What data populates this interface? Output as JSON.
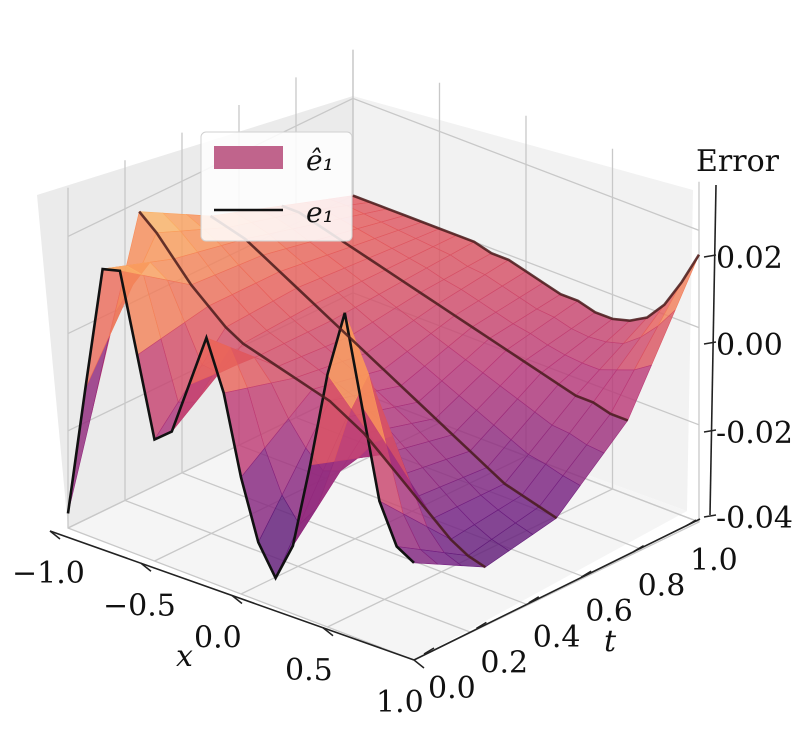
{
  "chart_data": {
    "type": "surface3d",
    "title": "",
    "xlabel": "x",
    "ylabel": "t",
    "zlabel": "Error",
    "xlim": [
      -1.0,
      1.0
    ],
    "ylim": [
      0.0,
      1.0
    ],
    "zlim": [
      -0.04,
      0.03
    ],
    "x_ticks": [
      "−1.0",
      "−0.5",
      "0.0",
      "0.5",
      "1.0"
    ],
    "y_ticks": [
      "0.0",
      "0.2",
      "0.4",
      "0.6",
      "0.8",
      "1.0"
    ],
    "z_ticks": [
      "0.02",
      "0.00",
      "-0.02",
      "-0.04"
    ],
    "grid": true,
    "legend_position": "upper-left",
    "series": [
      {
        "name": "ê₁",
        "kind": "surface",
        "colormap": "magma",
        "color": "#c0648c"
      },
      {
        "name": "e₁",
        "kind": "lines",
        "color": "#111111"
      }
    ],
    "slices": [
      {
        "t": 0.0,
        "x": [
          -1.0,
          -0.9,
          -0.8,
          -0.7,
          -0.6,
          -0.5,
          -0.4,
          -0.3,
          -0.2,
          -0.1,
          0.0,
          0.1,
          0.2,
          0.3,
          0.4,
          0.5,
          0.6,
          0.7,
          0.8,
          0.9,
          1.0
        ],
        "e1": [
          -0.037,
          -0.01,
          0.016,
          0.017,
          0.001,
          -0.015,
          -0.012,
          -0.001,
          0.01,
          0.0,
          -0.016,
          -0.028,
          -0.034,
          -0.026,
          -0.008,
          0.012,
          0.026,
          0.008,
          -0.01,
          -0.018,
          -0.02
        ]
      },
      {
        "t": 0.25,
        "x": [
          -1.0,
          -0.9,
          -0.8,
          -0.7,
          -0.6,
          -0.5,
          -0.4,
          -0.3,
          -0.2,
          -0.1,
          0.0,
          0.1,
          0.2,
          0.3,
          0.4,
          0.5,
          0.6,
          0.7,
          0.8,
          0.9,
          1.0
        ],
        "e1": [
          0.018,
          0.015,
          0.011,
          0.007,
          0.004,
          0.001,
          -0.001,
          -0.002,
          -0.003,
          -0.004,
          -0.005,
          -0.006,
          -0.008,
          -0.01,
          -0.013,
          -0.016,
          -0.019,
          -0.022,
          -0.025,
          -0.027,
          -0.028
        ]
      },
      {
        "t": 0.5,
        "x": [
          -1.0,
          -0.9,
          -0.8,
          -0.7,
          -0.6,
          -0.5,
          -0.4,
          -0.3,
          -0.2,
          -0.1,
          0.0,
          0.1,
          0.2,
          0.3,
          0.4,
          0.5,
          0.6,
          0.7,
          0.8,
          0.9,
          1.0
        ],
        "e1": [
          0.01,
          0.009,
          0.008,
          0.006,
          0.004,
          0.002,
          0.0,
          -0.002,
          -0.004,
          -0.006,
          -0.008,
          -0.01,
          -0.012,
          -0.014,
          -0.016,
          -0.018,
          -0.02,
          -0.022,
          -0.023,
          -0.024,
          -0.025
        ]
      },
      {
        "t": 0.75,
        "x": [
          -1.0,
          -0.9,
          -0.8,
          -0.7,
          -0.6,
          -0.5,
          -0.4,
          -0.3,
          -0.2,
          -0.1,
          0.0,
          0.1,
          0.2,
          0.3,
          0.4,
          0.5,
          0.6,
          0.7,
          0.8,
          0.9,
          1.0
        ],
        "e1": [
          0.005,
          0.005,
          0.004,
          0.003,
          0.002,
          0.001,
          0.0,
          -0.001,
          -0.002,
          -0.003,
          -0.004,
          -0.005,
          -0.006,
          -0.007,
          -0.008,
          -0.009,
          -0.01,
          -0.011,
          -0.011,
          -0.012,
          -0.012
        ]
      },
      {
        "t": 1.0,
        "x": [
          -1.0,
          -0.9,
          -0.8,
          -0.7,
          -0.6,
          -0.5,
          -0.4,
          -0.3,
          -0.2,
          -0.1,
          0.0,
          0.1,
          0.2,
          0.3,
          0.4,
          0.5,
          0.6,
          0.7,
          0.8,
          0.9,
          1.0
        ],
        "e1": [
          0.0,
          0.0,
          0.0,
          0.0,
          0.0,
          0.0,
          0.0,
          0.0,
          -0.001,
          -0.001,
          -0.002,
          -0.003,
          -0.004,
          -0.004,
          -0.005,
          -0.005,
          -0.004,
          -0.002,
          0.002,
          0.008,
          0.015
        ]
      }
    ]
  }
}
